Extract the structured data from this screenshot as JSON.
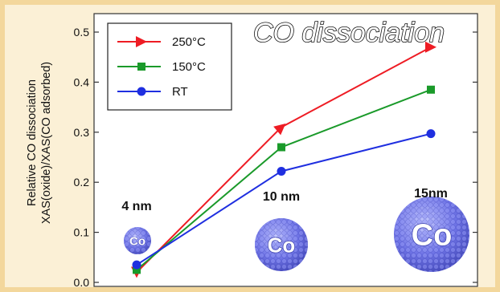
{
  "chart_data": {
    "type": "line",
    "title": "CO dissociation",
    "ylabel_lines": [
      "Relative CO dissociation",
      "XAS(oxide)/XAS(CO adsorbed)"
    ],
    "x": [
      "4 nm",
      "10 nm",
      "15nm"
    ],
    "ylim": [
      0,
      0.5
    ],
    "yticks": [
      "0.0",
      "0.1",
      "0.2",
      "0.3",
      "0.4",
      "0.5"
    ],
    "grid": false,
    "legend_position": "top-left",
    "series": [
      {
        "name": "250°C",
        "values": [
          0.02,
          0.31,
          0.47
        ],
        "color": "#ee1c24",
        "marker": "triangle"
      },
      {
        "name": "150°C",
        "values": [
          0.025,
          0.27,
          0.385
        ],
        "color": "#1a9a2a",
        "marker": "square"
      },
      {
        "name": "RT",
        "values": [
          0.035,
          0.222,
          0.297
        ],
        "color": "#1f2fe0",
        "marker": "circle"
      }
    ],
    "particles": [
      {
        "label": "Co",
        "size_label": "4 nm"
      },
      {
        "label": "Co",
        "size_label": "10 nm"
      },
      {
        "label": "Co",
        "size_label": "15nm"
      }
    ]
  }
}
